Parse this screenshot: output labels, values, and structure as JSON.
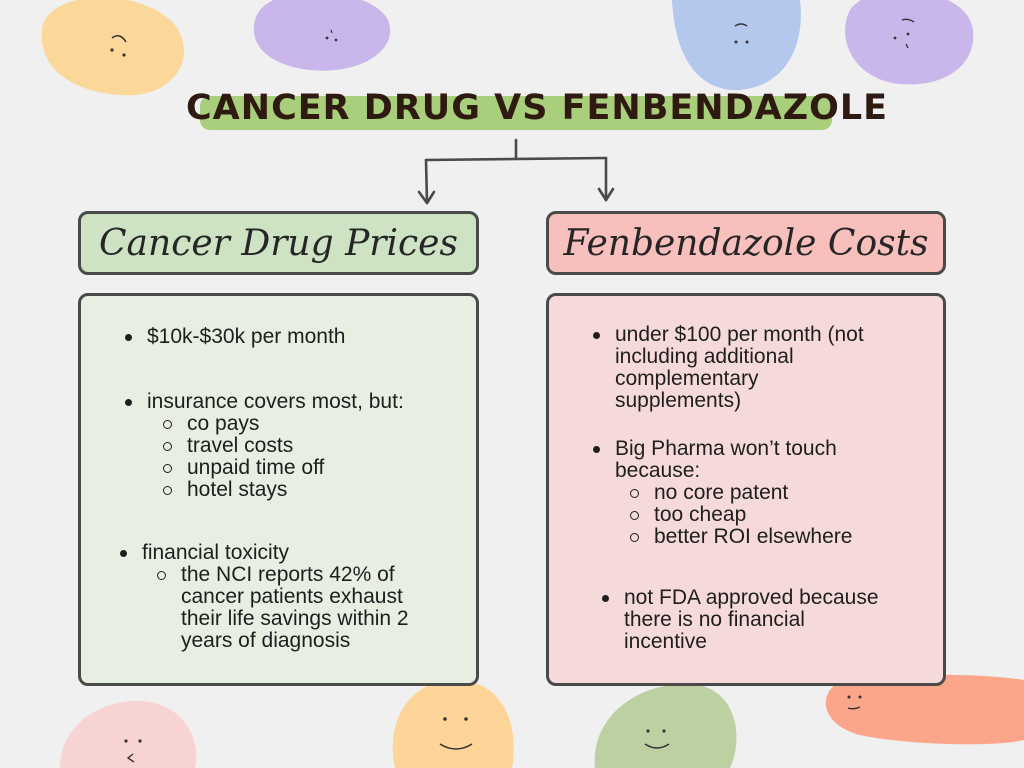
{
  "title": "CANCER DRUG VS FENBENDAZOLE",
  "left": {
    "heading": "Cancer Drug Prices",
    "items": [
      {
        "text": "$10k-$30k per month"
      },
      {
        "text": "insurance covers most, but:",
        "sub": [
          "co pays",
          "travel costs",
          "unpaid time off",
          "hotel stays"
        ]
      },
      {
        "text": "financial toxicity",
        "sub": [
          "the NCI reports 42% of",
          "cancer patients exhaust",
          "their life savings within 2",
          "years of diagnosis"
        ]
      }
    ]
  },
  "right": {
    "heading": "Fenbendazole Costs",
    "items": [
      {
        "lines": [
          "under $100 per month (not",
          "including additional",
          "complementary",
          "supplements)"
        ]
      },
      {
        "lines": [
          "Big Pharma won’t touch",
          "because:"
        ],
        "sub": [
          "no core patent",
          "too cheap",
          "better ROI elsewhere"
        ]
      },
      {
        "lines": [
          "not FDA approved because",
          "there is no financial",
          "incentive"
        ]
      }
    ]
  },
  "colors": {
    "title_bar": "#a9cf7c",
    "left_header": "#cde3c4",
    "right_header": "#f8c0bd",
    "left_panel": "#e7efe3",
    "right_panel": "#f6dada",
    "blob_orange": "#fbd79a",
    "blob_purple": "#c9b6ea",
    "blob_blue": "#b4c8ee",
    "blob_pink": "#f8d3d3",
    "blob_yellow": "#fdd598",
    "blob_green": "#bcd0a2",
    "blob_salmon": "#fba68a"
  }
}
